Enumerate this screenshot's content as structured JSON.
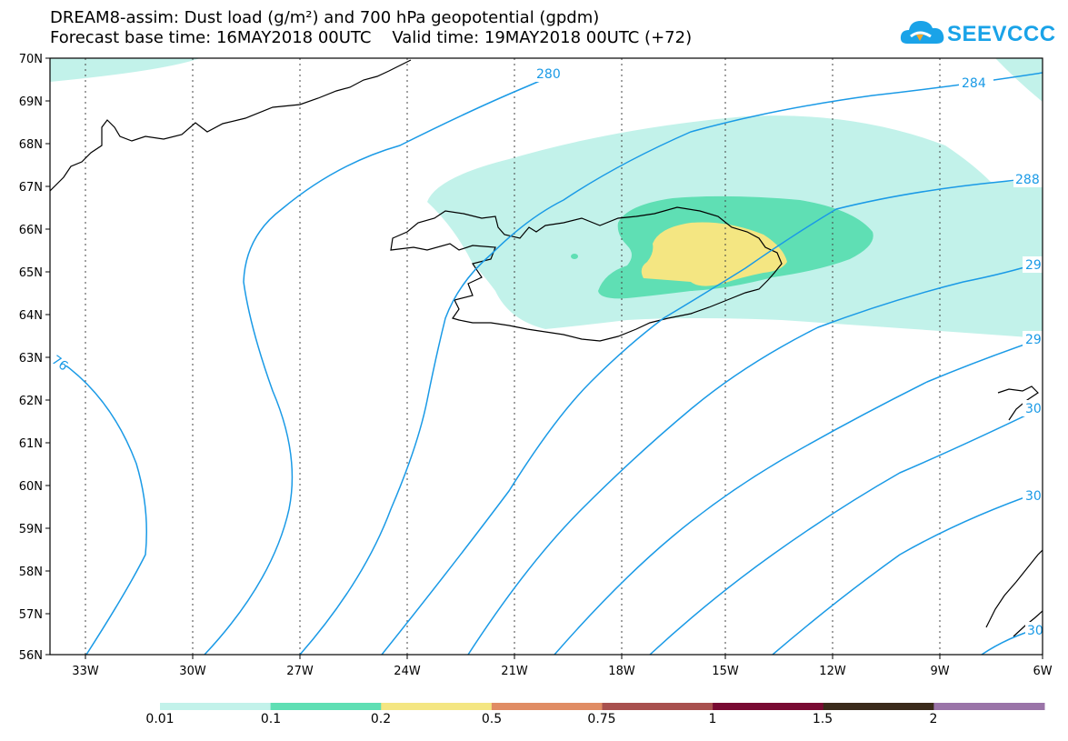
{
  "title_line1": "DREAM8-assim: Dust load (g/m²) and 700 hPa geopotential (gpdm)",
  "title_line2": "Forecast base time: 16MAY2018 00UTC    Valid time: 19MAY2018 00UTC (+72)",
  "logo_text": "SEEVCCC",
  "map": {
    "lat_range": [
      56,
      70
    ],
    "lon_range": [
      -34.5,
      -6
    ],
    "lat_labels": [
      "70N",
      "69N",
      "68N",
      "67N",
      "66N",
      "65N",
      "64N",
      "63N",
      "62N",
      "61N",
      "60N",
      "59N",
      "58N",
      "57N",
      "56N"
    ],
    "lon_labels": [
      "33W",
      "30W",
      "27W",
      "24W",
      "21W",
      "18W",
      "15W",
      "12W",
      "9W",
      "6W"
    ],
    "contour_labels": [
      "280",
      "284",
      "288",
      "29",
      "29",
      "30",
      "30",
      "76",
      "30"
    ],
    "contour_color": "#1a9ae6"
  },
  "colorbar": {
    "labels": [
      "0.01",
      "0.1",
      "0.2",
      "0.5",
      "0.75",
      "1",
      "1.5",
      "2"
    ],
    "colors": [
      "#c2f2ea",
      "#5fdfb4",
      "#f4e682",
      "#e08c64",
      "#a8504e",
      "#780a32",
      "#3a2a1a",
      "#9a74a8"
    ]
  }
}
